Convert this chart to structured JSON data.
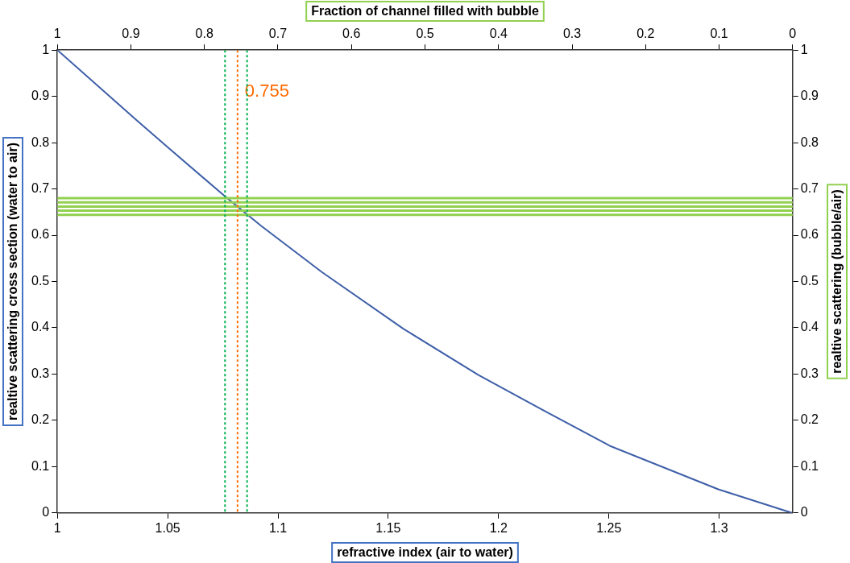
{
  "chart_data": {
    "type": "line",
    "xlabel": "refractive index (air to water)",
    "ylabel": "realtive scattering cross section (water to air)",
    "y2label": "realtive scattering (bubble/air)",
    "x2label": "Fraction of channel filled with bubble",
    "series": [
      {
        "color": "#3e5fa8",
        "x": [
          1,
          1.0356,
          1.05,
          1.076,
          1.0924,
          1.12,
          1.1568,
          1.1909,
          1.2186,
          1.2504,
          1.2996,
          1.333
        ],
        "values": [
          1,
          0.85,
          0.79,
          0.684,
          0.62,
          0.52,
          0.398,
          0.298,
          0.226,
          0.145,
          0.051,
          0
        ]
      }
    ],
    "xlim": [
      1,
      1.3333
    ],
    "xticks": [
      1,
      1.05,
      1.1,
      1.15,
      1.2,
      1.25,
      1.3
    ],
    "x2lim": [
      1,
      0
    ],
    "x2ticks": [
      1,
      0.9,
      0.8,
      0.7,
      0.6,
      0.5,
      0.4,
      0.3,
      0.2,
      0.1,
      0
    ],
    "ylim": [
      0,
      1
    ],
    "yticks": [
      0,
      0.1,
      0.2,
      0.3,
      0.4,
      0.5,
      0.6,
      0.7,
      0.8,
      0.9,
      1
    ],
    "y2lim": [
      0,
      1
    ],
    "y2ticks": [
      0,
      0.1,
      0.2,
      0.3,
      0.4,
      0.5,
      0.6,
      0.7,
      0.8,
      0.9,
      1
    ],
    "ref_lines": [
      {
        "axis": "y2",
        "value": 0.68,
        "color": "#92d050"
      },
      {
        "axis": "y2",
        "value": 0.671,
        "color": "#92d050"
      },
      {
        "axis": "y2",
        "value": 0.662,
        "color": "#92d050"
      },
      {
        "axis": "y2",
        "value": 0.653,
        "color": "#92d050"
      },
      {
        "axis": "y2",
        "value": 0.644,
        "color": "#92d050"
      },
      {
        "axis": "x2",
        "value": 0.772,
        "color": "#00b050",
        "line_style": "dotted"
      },
      {
        "axis": "x2",
        "value": 0.755,
        "label": "0.755",
        "color": "#ff6a00",
        "line_style": "dotted"
      },
      {
        "axis": "x2",
        "value": 0.742,
        "color": "#00b050",
        "line_style": "dotted"
      }
    ],
    "marker": "none",
    "line_style": "solid",
    "legend": false,
    "grid": false
  }
}
